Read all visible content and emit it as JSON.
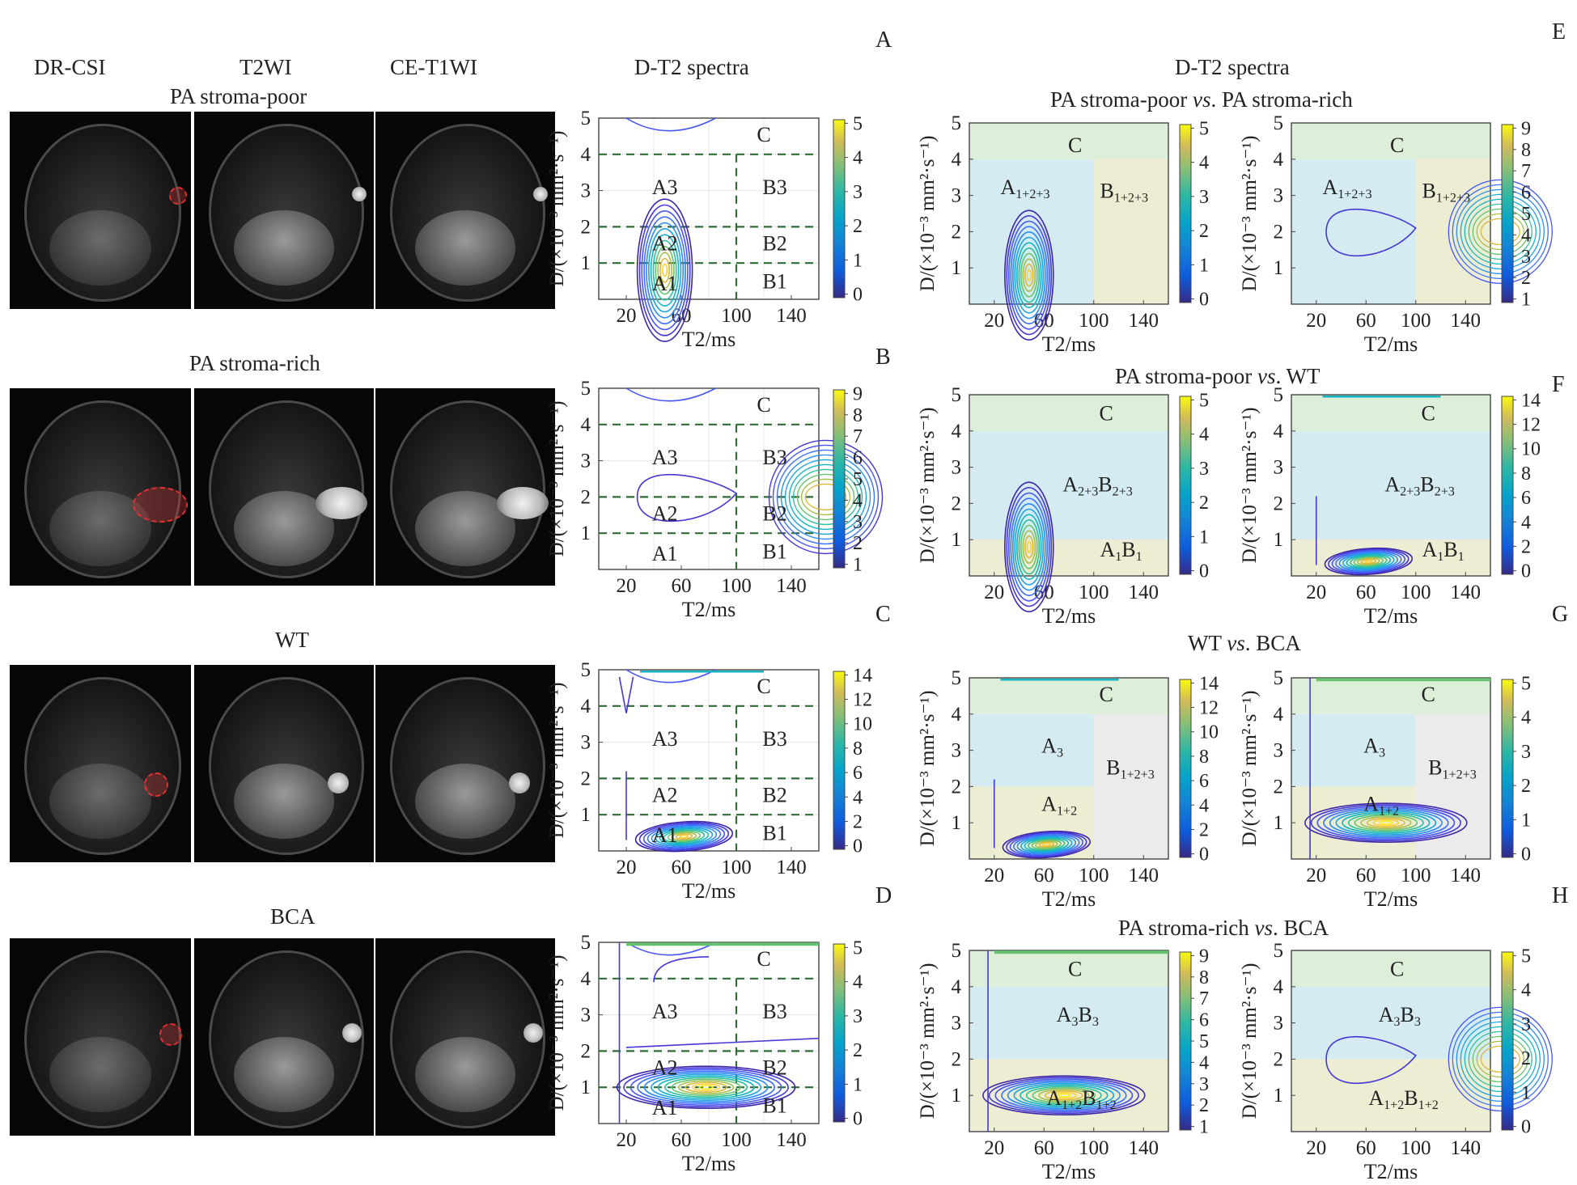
{
  "columns": [
    "DR-CSI",
    "T2WI",
    "CE-T1WI",
    "D-T2 spectra"
  ],
  "right_header": "D-T2 spectra",
  "panel_letters": [
    "A",
    "B",
    "C",
    "D",
    "E",
    "F",
    "G",
    "H"
  ],
  "rows": [
    {
      "title": "PA stroma-poor"
    },
    {
      "title": "PA stroma-rich"
    },
    {
      "title": "WT"
    },
    {
      "title": "BCA"
    }
  ],
  "comparisons": [
    {
      "title_a": "PA stroma-poor ",
      "vs": "vs",
      "title_b": ". PA stroma-rich"
    },
    {
      "title_a": "PA stroma-poor ",
      "vs": "vs",
      "title_b": ". WT"
    },
    {
      "title_a": "WT ",
      "vs": "vs",
      "title_b": ". BCA"
    },
    {
      "title_a": "PA stroma-rich ",
      "vs": "vs",
      "title_b": ". BCA"
    }
  ],
  "axis": {
    "xlabel": "T2/ms",
    "ylabel": "D/(×10⁻³ mm²·s⁻¹)",
    "xticks": [
      "20",
      "60",
      "100",
      "140"
    ],
    "yticks": [
      "1",
      "2",
      "3",
      "4",
      "5"
    ]
  },
  "chart_data": [
    {
      "type": "contour",
      "panel": "A",
      "colorbar_ticks": [
        "0",
        "1",
        "2",
        "3",
        "4",
        "5"
      ],
      "regions": [
        "C",
        "A3",
        "B3",
        "A2",
        "B2",
        "A1",
        "B1"
      ],
      "peak": {
        "x": 50,
        "y": 0.8
      }
    },
    {
      "type": "contour",
      "panel": "B",
      "colorbar_ticks": [
        "1",
        "2",
        "3",
        "4",
        "5",
        "6",
        "7",
        "8",
        "9"
      ],
      "regions": [
        "C",
        "A3",
        "B3",
        "A2",
        "B2",
        "A1",
        "B1"
      ],
      "peak": {
        "x": 150,
        "y": 2
      }
    },
    {
      "type": "contour",
      "panel": "C",
      "colorbar_ticks": [
        "0",
        "2",
        "4",
        "6",
        "8",
        "10",
        "12",
        "14"
      ],
      "regions": [
        "C",
        "A3",
        "B3",
        "A2",
        "B2",
        "A1",
        "B1"
      ],
      "peak": {
        "x": 62,
        "y": 0.4
      }
    },
    {
      "type": "contour",
      "panel": "D",
      "colorbar_ticks": [
        "0",
        "1",
        "2",
        "3",
        "4",
        "5"
      ],
      "regions": [
        "C",
        "A3",
        "B3",
        "A2",
        "B2",
        "A1",
        "B1"
      ],
      "peak": {
        "x": 78,
        "y": 1.0
      }
    },
    {
      "type": "contour",
      "panel": "E1",
      "colorbar_ticks": [
        "0",
        "1",
        "2",
        "3",
        "4",
        "5"
      ],
      "regions": [
        "C",
        "A1+2+3",
        "B1+2+3"
      ]
    },
    {
      "type": "contour",
      "panel": "E2",
      "colorbar_ticks": [
        "1",
        "2",
        "3",
        "4",
        "5",
        "6",
        "7",
        "8",
        "9"
      ],
      "regions": [
        "C",
        "A1+2+3",
        "B1+2+3"
      ]
    },
    {
      "type": "contour",
      "panel": "F1",
      "colorbar_ticks": [
        "0",
        "1",
        "2",
        "3",
        "4",
        "5"
      ],
      "regions": [
        "C",
        "A2+3B2+3",
        "A1B1"
      ]
    },
    {
      "type": "contour",
      "panel": "F2",
      "colorbar_ticks": [
        "0",
        "2",
        "4",
        "6",
        "8",
        "10",
        "12",
        "14"
      ],
      "regions": [
        "C",
        "A2+3B2+3",
        "A1B1"
      ]
    },
    {
      "type": "contour",
      "panel": "G1",
      "colorbar_ticks": [
        "0",
        "2",
        "4",
        "6",
        "8",
        "10",
        "12",
        "14"
      ],
      "regions": [
        "C",
        "A3",
        "B1+2+3",
        "A1+2"
      ]
    },
    {
      "type": "contour",
      "panel": "G2",
      "colorbar_ticks": [
        "0",
        "1",
        "2",
        "3",
        "4",
        "5"
      ],
      "regions": [
        "C",
        "A3",
        "B1+2+3",
        "A1+2"
      ]
    },
    {
      "type": "contour",
      "panel": "H1",
      "colorbar_ticks": [
        "1",
        "2",
        "3",
        "4",
        "5",
        "6",
        "7",
        "8",
        "9"
      ],
      "regions": [
        "C",
        "A3B3",
        "A1+2B1+2"
      ]
    },
    {
      "type": "contour",
      "panel": "H2",
      "colorbar_ticks": [
        "0",
        "1",
        "2",
        "3",
        "4",
        "5"
      ],
      "regions": [
        "C",
        "A3B3",
        "A1+2B1+2"
      ]
    }
  ]
}
